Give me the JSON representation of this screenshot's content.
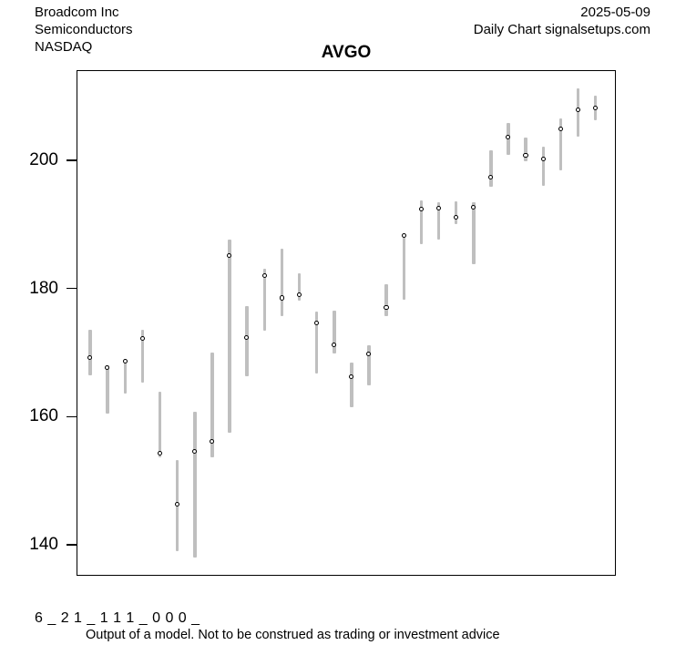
{
  "header": {
    "company": "Broadcom Inc",
    "sector": "Semiconductors",
    "exchange": "NASDAQ",
    "date": "2025-05-09",
    "chart_info": "Daily Chart signalsetups.com"
  },
  "title": "AVGO",
  "footer": {
    "code": "6 _ 2 1 _ 1 1 1 _ 0 0 0 _",
    "disclaimer": "Output of a model. Not to be construed as trading or investment advice"
  },
  "chart_data": {
    "type": "bar",
    "subtype": "high-low-close range bars",
    "title": "AVGO",
    "xlabel": "",
    "ylabel": "",
    "x_tick_labels": [],
    "y_ticks": [
      140,
      160,
      180,
      200
    ],
    "ylim": [
      135,
      213.5
    ],
    "grid": false,
    "legend": "none",
    "bar_color": "#bfbfbf",
    "marker": "open-circle-at-close",
    "bars": [
      {
        "high": 173.5,
        "low": 166.5,
        "close": 169.2
      },
      {
        "high": 168.0,
        "low": 160.5,
        "close": 167.6
      },
      {
        "high": 169.0,
        "low": 163.6,
        "close": 168.6
      },
      {
        "high": 173.6,
        "low": 165.3,
        "close": 172.2
      },
      {
        "high": 163.9,
        "low": 153.7,
        "close": 154.2
      },
      {
        "high": 153.2,
        "low": 139.0,
        "close": 146.3
      },
      {
        "high": 160.8,
        "low": 138.0,
        "close": 154.5
      },
      {
        "high": 170.0,
        "low": 153.7,
        "close": 156.1
      },
      {
        "high": 187.6,
        "low": 157.5,
        "close": 185.1
      },
      {
        "high": 177.2,
        "low": 166.3,
        "close": 172.3
      },
      {
        "high": 183.1,
        "low": 173.4,
        "close": 182.0
      },
      {
        "high": 186.2,
        "low": 175.7,
        "close": 178.5
      },
      {
        "high": 182.4,
        "low": 178.1,
        "close": 179.0
      },
      {
        "high": 176.4,
        "low": 166.7,
        "close": 174.6
      },
      {
        "high": 176.6,
        "low": 169.8,
        "close": 171.2
      },
      {
        "high": 168.4,
        "low": 161.5,
        "close": 166.2
      },
      {
        "high": 171.1,
        "low": 164.9,
        "close": 169.7
      },
      {
        "high": 180.6,
        "low": 175.7,
        "close": 177.0
      },
      {
        "high": 188.5,
        "low": 178.3,
        "close": 188.2
      },
      {
        "high": 193.7,
        "low": 186.9,
        "close": 192.4
      },
      {
        "high": 193.5,
        "low": 187.6,
        "close": 192.5
      },
      {
        "high": 193.6,
        "low": 190.0,
        "close": 191.1
      },
      {
        "high": 193.5,
        "low": 183.8,
        "close": 192.6
      },
      {
        "high": 201.6,
        "low": 195.9,
        "close": 197.4
      },
      {
        "high": 205.9,
        "low": 200.9,
        "close": 203.6
      },
      {
        "high": 203.5,
        "low": 199.8,
        "close": 200.8
      },
      {
        "high": 202.1,
        "low": 196.0,
        "close": 200.2
      },
      {
        "high": 206.6,
        "low": 198.5,
        "close": 204.9
      },
      {
        "high": 211.3,
        "low": 203.7,
        "close": 207.8
      },
      {
        "high": 210.1,
        "low": 206.3,
        "close": 208.2
      }
    ]
  }
}
